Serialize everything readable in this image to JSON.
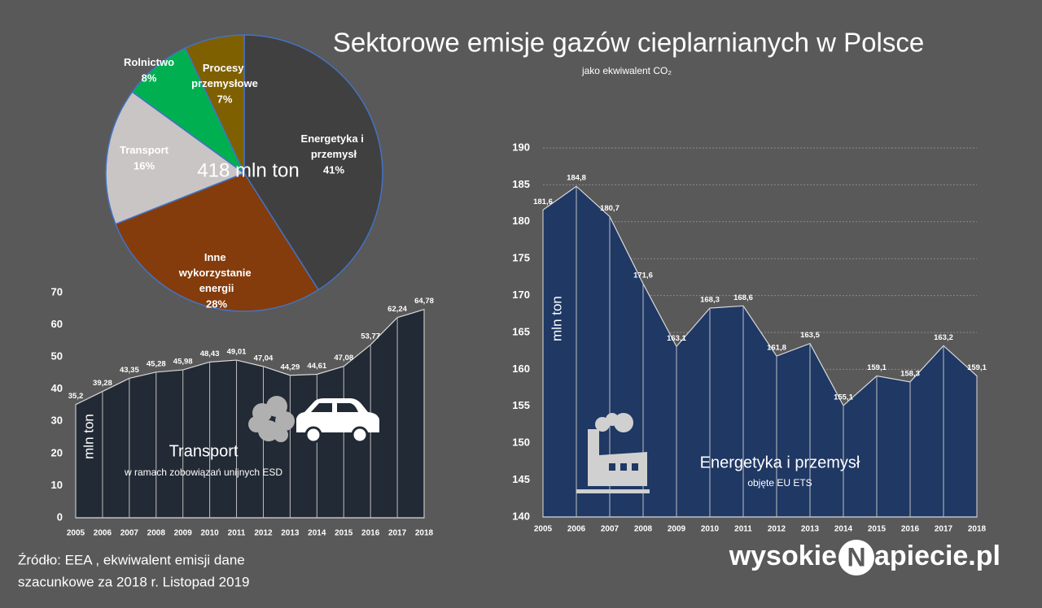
{
  "title": "Sektorowe emisje gazów cieplarnianych w Polsce",
  "subtitle": "jako ekwiwalent CO₂",
  "source": [
    "Źródło: EEA , ekwiwalent emisji dane",
    "szacunkowe za 2018 r.  Listopad 2019"
  ],
  "logo": {
    "left": "wysokie",
    "mark": "N",
    "right": "apiecie.pl"
  },
  "chart_data": [
    {
      "type": "pie",
      "center_label": "418 mln ton",
      "categories": [
        "Energetyka i przemysł",
        "Inne wykorzystanie energii",
        "Transport",
        "Rolnictwo",
        "Procesy przemysłowe"
      ],
      "values": [
        41,
        28,
        16,
        8,
        7
      ],
      "value_labels": [
        "41%",
        "28%",
        "16%",
        "8%",
        "7%"
      ],
      "colors": [
        "#404040",
        "#843c0c",
        "#c9c5c5",
        "#00b050",
        "#7f6000"
      ]
    },
    {
      "type": "area",
      "title": "Transport",
      "subtitle": "w ramach zobowiązań unijnych ESD",
      "y_label": "mln ton",
      "categories": [
        "2005",
        "2006",
        "2007",
        "2008",
        "2009",
        "2010",
        "2011",
        "2012",
        "2013",
        "2014",
        "2015",
        "2016",
        "2017",
        "2018"
      ],
      "values": [
        35.2,
        39.28,
        43.35,
        45.28,
        45.98,
        48.43,
        49.01,
        47.04,
        44.29,
        44.61,
        47.08,
        53.77,
        62.24,
        64.78
      ],
      "value_labels": [
        "35,2",
        "39,28",
        "43,35",
        "45,28",
        "45,98",
        "48,43",
        "49,01",
        "47,04",
        "44,29",
        "44,61",
        "47,08",
        "53,77",
        "62,24",
        "64,78"
      ],
      "color": "#222a35",
      "ylim": [
        0,
        70
      ],
      "yticks": [
        0,
        10,
        20,
        30,
        40,
        50,
        60,
        70
      ],
      "grid": false
    },
    {
      "type": "area",
      "title": "Energetyka i przemysł",
      "subtitle": "objęte EU ETS",
      "y_label": "mln ton",
      "categories": [
        "2005",
        "2006",
        "2007",
        "2008",
        "2009",
        "2010",
        "2011",
        "2012",
        "2013",
        "2014",
        "2015",
        "2016",
        "2017",
        "2018"
      ],
      "values": [
        181.6,
        184.8,
        180.7,
        171.6,
        163.1,
        168.3,
        168.6,
        161.8,
        163.5,
        155.1,
        159.1,
        158.3,
        163.2,
        159.1
      ],
      "value_labels": [
        "181,6",
        "184,8",
        "180,7",
        "171,6",
        "163,1",
        "168,3",
        "168,6",
        "161,8",
        "163,5",
        "155,1",
        "159,1",
        "158,3",
        "163,2",
        "159,1"
      ],
      "color": "#1f3864",
      "ylim": [
        140,
        190
      ],
      "yticks": [
        140,
        145,
        150,
        155,
        160,
        165,
        170,
        175,
        180,
        185,
        190
      ],
      "grid": true
    }
  ]
}
